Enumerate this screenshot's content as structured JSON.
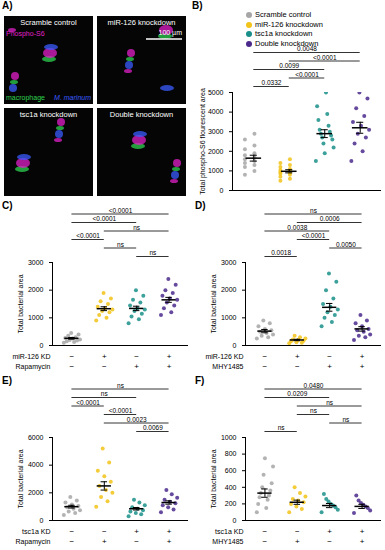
{
  "image_panel": {
    "panel": "A)",
    "tiles": [
      "Scramble control",
      "miR-126 knockdown",
      "tsc1a knockdown",
      "Double knockdown"
    ],
    "channels": [
      {
        "label": "Phospho-S6",
        "color": "#e020c8"
      },
      {
        "label": "macrophage",
        "color": "#2fd24f"
      },
      {
        "label": "M. marinum",
        "color": "#3a5cff"
      }
    ],
    "scale_bar": "100 µm"
  },
  "chart_data": [
    {
      "panel": "B)",
      "type": "scatter",
      "y_label": "Total phospho-S6 flourescent area",
      "ylim": [
        0,
        5000
      ],
      "yticks": [
        0,
        1000,
        2000,
        3000,
        4000,
        5000
      ],
      "legend": "top-left",
      "series": [
        {
          "name": "Scramble control",
          "color": "#a6a6a6",
          "values": [
            800,
            1000,
            1200,
            1300,
            1400,
            1500,
            1600,
            1700,
            1800,
            1900,
            2100,
            2300,
            2600,
            2900
          ],
          "mean": 1650,
          "sem": 150
        },
        {
          "name": "miR-126 knockdown",
          "color": "#f2c318",
          "values": [
            500,
            600,
            700,
            800,
            850,
            900,
            950,
            1000,
            1050,
            1100,
            1200,
            1300,
            1400,
            1600
          ],
          "mean": 980,
          "sem": 80
        },
        {
          "name": "tsc1a knockdown",
          "color": "#1a8f8a",
          "values": [
            1500,
            1900,
            2200,
            2400,
            2600,
            2700,
            2800,
            2900,
            3000,
            3100,
            3300,
            3600,
            3900,
            4300,
            5000
          ],
          "mean": 2900,
          "sem": 200
        },
        {
          "name": "Double knockdown",
          "color": "#4b2a8c",
          "values": [
            1500,
            2000,
            2400,
            2700,
            2900,
            3100,
            3300,
            3500,
            3800,
            4200,
            4700,
            5000
          ],
          "mean": 3200,
          "sem": 280
        }
      ],
      "comparisons": [
        {
          "groups": [
            0,
            1
          ],
          "label": "0.0332"
        },
        {
          "groups": [
            1,
            2
          ],
          "label": "<0.0001"
        },
        {
          "groups": [
            0,
            2
          ],
          "label": "0.0099"
        },
        {
          "groups": [
            1,
            3
          ],
          "label": "<0.0001"
        },
        {
          "groups": [
            0,
            3
          ],
          "label": "0.0048"
        }
      ]
    },
    {
      "panel": "C)",
      "type": "scatter",
      "y_label": "Total bacterial area",
      "ylim": [
        0,
        3000
      ],
      "yticks": [
        0,
        1000,
        2000,
        3000
      ],
      "conditions": [
        {
          "label": "miR-126 KD",
          "values": [
            "−",
            "+",
            "−",
            "+"
          ]
        },
        {
          "label": "Rapamycin",
          "values": [
            "−",
            "−",
            "+",
            "+"
          ]
        }
      ],
      "series": [
        {
          "color": "#a6a6a6",
          "values": [
            100,
            130,
            150,
            180,
            200,
            220,
            250,
            270,
            300,
            350,
            400,
            450
          ],
          "mean": 260,
          "sem": 30
        },
        {
          "color": "#f2c318",
          "values": [
            900,
            1000,
            1100,
            1200,
            1250,
            1300,
            1350,
            1400,
            1500,
            1600,
            1700,
            1900
          ],
          "mean": 1330,
          "sem": 70
        },
        {
          "color": "#1a8f8a",
          "values": [
            800,
            950,
            1050,
            1150,
            1250,
            1300,
            1350,
            1450,
            1550,
            1650,
            1800,
            2000
          ],
          "mean": 1340,
          "sem": 80
        },
        {
          "color": "#4b2a8c",
          "values": [
            1100,
            1200,
            1350,
            1450,
            1550,
            1650,
            1700,
            1800,
            1900,
            2000,
            2200,
            2400
          ],
          "mean": 1650,
          "sem": 90
        }
      ],
      "comparisons": [
        {
          "groups": [
            2,
            3
          ],
          "label": "ns"
        },
        {
          "groups": [
            1,
            2
          ],
          "label": "ns"
        },
        {
          "groups": [
            0,
            1
          ],
          "label": "<0.0001"
        },
        {
          "groups": [
            1,
            3
          ],
          "label": "ns"
        },
        {
          "groups": [
            0,
            2
          ],
          "label": "<0.0001"
        },
        {
          "groups": [
            0,
            3
          ],
          "label": "<0.0001"
        }
      ]
    },
    {
      "panel": "D)",
      "type": "scatter",
      "y_label": "Total bacterial area",
      "ylim": [
        0,
        3000
      ],
      "yticks": [
        0,
        1000,
        2000,
        3000
      ],
      "conditions": [
        {
          "label": "miR-126 KD",
          "values": [
            "−",
            "+",
            "−",
            "+"
          ]
        },
        {
          "label": "MHY1485",
          "values": [
            "−",
            "−",
            "+",
            "+"
          ]
        }
      ],
      "series": [
        {
          "color": "#a6a6a6",
          "values": [
            250,
            300,
            350,
            400,
            450,
            500,
            550,
            600,
            700,
            800,
            900
          ],
          "mean": 520,
          "sem": 60
        },
        {
          "color": "#f2c318",
          "values": [
            80,
            100,
            120,
            150,
            170,
            200,
            220,
            250,
            300,
            350
          ],
          "mean": 200,
          "sem": 25
        },
        {
          "color": "#1a8f8a",
          "values": [
            700,
            850,
            1000,
            1100,
            1200,
            1300,
            1400,
            1500,
            1700,
            2000,
            2300,
            2600
          ],
          "mean": 1380,
          "sem": 140
        },
        {
          "color": "#4b2a8c",
          "values": [
            200,
            300,
            350,
            400,
            500,
            550,
            600,
            700,
            800,
            900,
            1100
          ],
          "mean": 600,
          "sem": 80
        }
      ],
      "comparisons": [
        {
          "groups": [
            0,
            1
          ],
          "label": "0.0018"
        },
        {
          "groups": [
            2,
            3
          ],
          "label": "0.0050"
        },
        {
          "groups": [
            1,
            2
          ],
          "label": "<0.0001"
        },
        {
          "groups": [
            0,
            2
          ],
          "label": "0.0038"
        },
        {
          "groups": [
            1,
            3
          ],
          "label": "0.0006"
        },
        {
          "groups": [
            0,
            3
          ],
          "label": "ns"
        }
      ]
    },
    {
      "panel": "E)",
      "type": "scatter",
      "y_label": "Total bacterial area",
      "ylim": [
        0,
        6000
      ],
      "yticks": [
        0,
        2000,
        4000,
        6000
      ],
      "conditions": [
        {
          "label": "tsc1a KD",
          "values": [
            "−",
            "−",
            "+",
            "+"
          ]
        },
        {
          "label": "Rapamycin",
          "values": [
            "−",
            "+",
            "−",
            "+"
          ]
        }
      ],
      "series": [
        {
          "color": "#a6a6a6",
          "values": [
            400,
            550,
            650,
            750,
            850,
            950,
            1050,
            1150,
            1300,
            1450,
            1700
          ],
          "mean": 1000,
          "sem": 100
        },
        {
          "color": "#f2c318",
          "values": [
            1000,
            1400,
            1700,
            2000,
            2200,
            2500,
            2800,
            3200,
            3600,
            4200,
            5200
          ],
          "mean": 2500,
          "sem": 300
        },
        {
          "color": "#1a8f8a",
          "values": [
            300,
            450,
            550,
            650,
            750,
            850,
            950,
            1100,
            1300,
            1500
          ],
          "mean": 850,
          "sem": 90
        },
        {
          "color": "#4b2a8c",
          "values": [
            600,
            800,
            950,
            1100,
            1250,
            1350,
            1500,
            1650,
            1900,
            2200
          ],
          "mean": 1300,
          "sem": 120
        }
      ],
      "comparisons": [
        {
          "groups": [
            2,
            3
          ],
          "label": "0.0069"
        },
        {
          "groups": [
            1,
            3
          ],
          "label": "0.0023"
        },
        {
          "groups": [
            1,
            2
          ],
          "label": "<0.0001"
        },
        {
          "groups": [
            0,
            1
          ],
          "label": "<0.0001"
        },
        {
          "groups": [
            0,
            2
          ],
          "label": "ns"
        },
        {
          "groups": [
            0,
            3
          ],
          "label": "ns"
        }
      ]
    },
    {
      "panel": "F)",
      "type": "scatter",
      "y_label": "Total bacterial area",
      "ylim": [
        0,
        1000
      ],
      "yticks": [
        0,
        200,
        400,
        600,
        800,
        1000
      ],
      "conditions": [
        {
          "label": "tsc1a KD",
          "values": [
            "−",
            "−",
            "+",
            "+"
          ]
        },
        {
          "label": "MHY1485",
          "values": [
            "−",
            "+",
            "−",
            "+"
          ]
        }
      ],
      "series": [
        {
          "color": "#a6a6a6",
          "values": [
            100,
            150,
            200,
            250,
            280,
            300,
            330,
            360,
            400,
            450,
            550,
            650,
            750
          ],
          "mean": 330,
          "sem": 50
        },
        {
          "color": "#f2c318",
          "values": [
            100,
            140,
            170,
            200,
            220,
            240,
            260,
            290,
            330,
            400
          ],
          "mean": 220,
          "sem": 25
        },
        {
          "color": "#1a8f8a",
          "values": [
            100,
            130,
            160,
            180,
            200,
            230,
            260,
            320
          ],
          "mean": 180,
          "sem": 25
        },
        {
          "color": "#4b2a8c",
          "values": [
            90,
            120,
            150,
            170,
            190,
            210,
            240,
            300
          ],
          "mean": 170,
          "sem": 25
        }
      ],
      "comparisons": [
        {
          "groups": [
            0,
            1
          ],
          "label": "ns"
        },
        {
          "groups": [
            2,
            3
          ],
          "label": "ns"
        },
        {
          "groups": [
            1,
            2
          ],
          "label": "ns"
        },
        {
          "groups": [
            1,
            3
          ],
          "label": "ns"
        },
        {
          "groups": [
            0,
            2
          ],
          "label": "0.0209"
        },
        {
          "groups": [
            0,
            3
          ],
          "label": "0.0480"
        }
      ]
    }
  ]
}
